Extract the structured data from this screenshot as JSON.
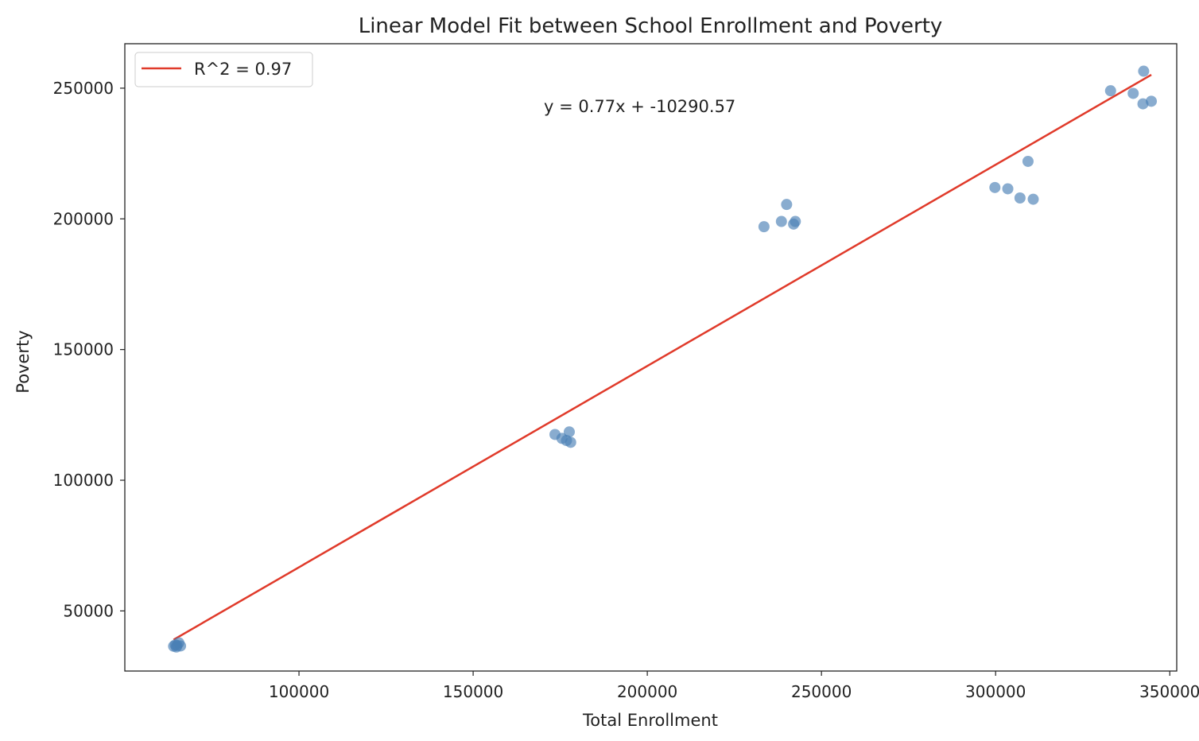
{
  "chart_data": {
    "type": "scatter",
    "title": "Linear Model Fit between School Enrollment and Poverty",
    "xlabel": "Total Enrollment",
    "ylabel": "Poverty",
    "xlim": [
      50000,
      352000
    ],
    "ylim": [
      27000,
      267000
    ],
    "xticks": [
      100000,
      150000,
      200000,
      250000,
      300000,
      350000
    ],
    "yticks": [
      50000,
      100000,
      150000,
      200000,
      250000
    ],
    "grid": false,
    "legend_position": "upper-left",
    "points": [
      {
        "x": 64000,
        "y": 36500
      },
      {
        "x": 64500,
        "y": 37000
      },
      {
        "x": 65000,
        "y": 36800
      },
      {
        "x": 65500,
        "y": 37800
      },
      {
        "x": 66000,
        "y": 36600
      },
      {
        "x": 64800,
        "y": 36200
      },
      {
        "x": 173500,
        "y": 117500
      },
      {
        "x": 175500,
        "y": 116000
      },
      {
        "x": 176800,
        "y": 115200
      },
      {
        "x": 177600,
        "y": 118500
      },
      {
        "x": 178000,
        "y": 114500
      },
      {
        "x": 233500,
        "y": 197000
      },
      {
        "x": 238500,
        "y": 199000
      },
      {
        "x": 240000,
        "y": 205500
      },
      {
        "x": 242000,
        "y": 198000
      },
      {
        "x": 242500,
        "y": 199000
      },
      {
        "x": 299800,
        "y": 212000
      },
      {
        "x": 303500,
        "y": 211500
      },
      {
        "x": 307000,
        "y": 208000
      },
      {
        "x": 309300,
        "y": 222000
      },
      {
        "x": 310800,
        "y": 207500
      },
      {
        "x": 333000,
        "y": 249000
      },
      {
        "x": 339500,
        "y": 248000
      },
      {
        "x": 342500,
        "y": 256500
      },
      {
        "x": 342300,
        "y": 244000
      },
      {
        "x": 344700,
        "y": 245000
      }
    ],
    "fit_line": {
      "x_start": 64000,
      "x_end": 344700,
      "slope": 0.77,
      "intercept": -10290.57
    },
    "legend": [
      {
        "label": "R^2 = 0.97"
      }
    ],
    "annotation": {
      "text": "y = 0.77x + -10290.57",
      "x": 172000,
      "y": 242000
    },
    "colors": {
      "points": "#4a7fb5",
      "line": "#e03a2a"
    }
  }
}
